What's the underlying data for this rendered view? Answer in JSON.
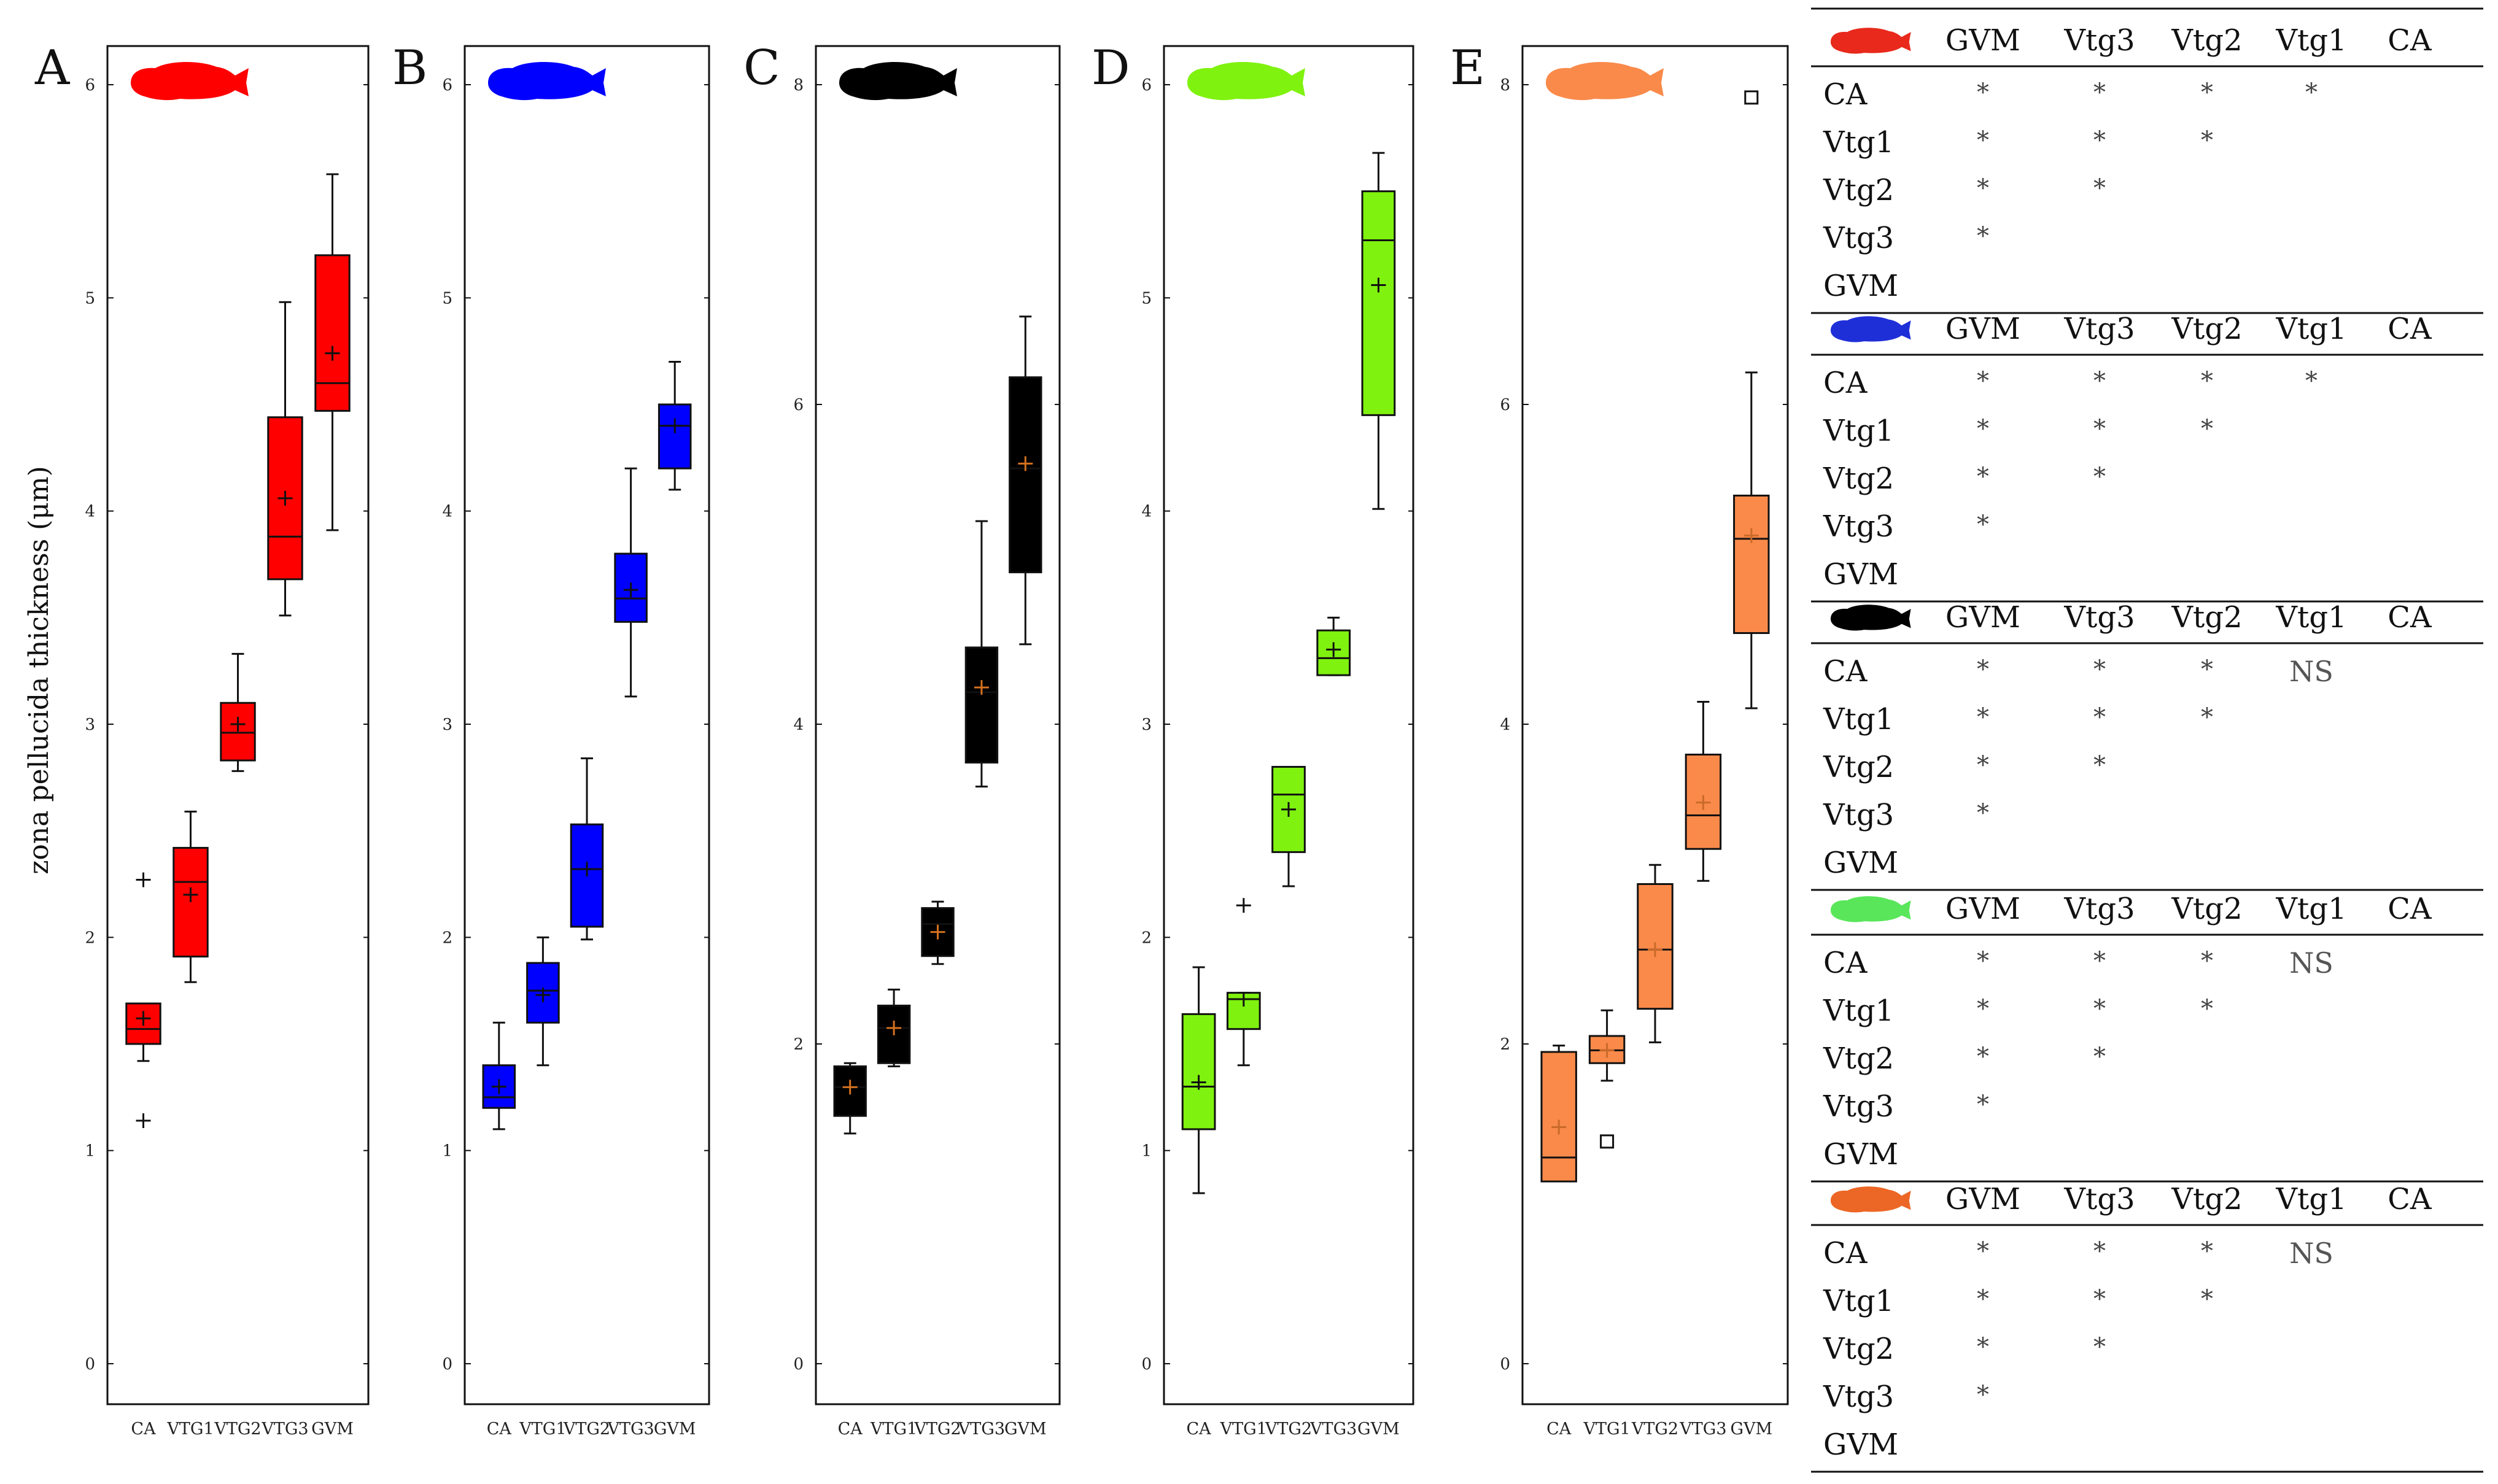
{
  "y_axis_label": "zona pellucida thickness (μm)",
  "chart_data": [
    {
      "type": "box",
      "panel_label": "A",
      "color": "#ff0000",
      "mean_color": "#111111",
      "categories": [
        "CA",
        "VTG1",
        "VTG2",
        "VTG3",
        "GVM"
      ],
      "ylim": [
        0,
        6
      ],
      "yticks": [
        0,
        1,
        2,
        3,
        4,
        5,
        6
      ],
      "boxes": [
        {
          "min": 1.42,
          "q1": 1.5,
          "median": 1.57,
          "q3": 1.69,
          "max": 1.69,
          "mean": 1.62,
          "outliers": [
            {
              "value": 2.27,
              "marker": "plus"
            },
            {
              "value": 1.14,
              "marker": "plus"
            }
          ]
        },
        {
          "min": 1.79,
          "q1": 1.91,
          "median": 2.26,
          "q3": 2.42,
          "max": 2.59,
          "mean": 2.2,
          "outliers": []
        },
        {
          "min": 2.78,
          "q1": 2.83,
          "median": 2.96,
          "q3": 3.1,
          "max": 3.33,
          "mean": 3.0,
          "outliers": []
        },
        {
          "min": 3.51,
          "q1": 3.68,
          "median": 3.88,
          "q3": 4.44,
          "max": 4.98,
          "mean": 4.06,
          "outliers": []
        },
        {
          "min": 3.91,
          "q1": 4.47,
          "median": 4.6,
          "q3": 5.2,
          "max": 5.58,
          "mean": 4.74,
          "outliers": []
        }
      ]
    },
    {
      "type": "box",
      "panel_label": "B",
      "color": "#0000ff",
      "mean_color": "#111111",
      "categories": [
        "CA",
        "VTG1",
        "VTG2",
        "VTG3",
        "GVM"
      ],
      "ylim": [
        0,
        6
      ],
      "yticks": [
        0,
        1,
        2,
        3,
        4,
        5,
        6
      ],
      "boxes": [
        {
          "min": 1.1,
          "q1": 1.2,
          "median": 1.25,
          "q3": 1.4,
          "max": 1.6,
          "mean": 1.3,
          "outliers": []
        },
        {
          "min": 1.4,
          "q1": 1.6,
          "median": 1.75,
          "q3": 1.88,
          "max": 2.0,
          "mean": 1.73,
          "outliers": []
        },
        {
          "min": 1.99,
          "q1": 2.05,
          "median": 2.32,
          "q3": 2.53,
          "max": 2.84,
          "mean": 2.32,
          "outliers": []
        },
        {
          "min": 3.13,
          "q1": 3.48,
          "median": 3.59,
          "q3": 3.8,
          "max": 4.2,
          "mean": 3.63,
          "outliers": []
        },
        {
          "min": 4.1,
          "q1": 4.2,
          "median": 4.4,
          "q3": 4.5,
          "max": 4.7,
          "mean": 4.4,
          "outliers": []
        }
      ]
    },
    {
      "type": "box",
      "panel_label": "C",
      "color": "#000000",
      "mean_color": "#d4711f",
      "categories": [
        "CA",
        "VTG1",
        "VTG2",
        "VTG3",
        "GVM"
      ],
      "ylim": [
        0,
        8
      ],
      "yticks": [
        0,
        2,
        4,
        6,
        8
      ],
      "boxes": [
        {
          "min": 1.44,
          "q1": 1.55,
          "median": 1.73,
          "q3": 1.86,
          "max": 1.88,
          "mean": 1.73,
          "outliers": []
        },
        {
          "min": 1.86,
          "q1": 1.88,
          "median": 2.1,
          "q3": 2.24,
          "max": 2.34,
          "mean": 2.1,
          "outliers": []
        },
        {
          "min": 2.5,
          "q1": 2.55,
          "median": 2.75,
          "q3": 2.85,
          "max": 2.89,
          "mean": 2.7,
          "outliers": []
        },
        {
          "min": 3.61,
          "q1": 3.76,
          "median": 4.2,
          "q3": 4.48,
          "max": 5.27,
          "mean": 4.23,
          "outliers": []
        },
        {
          "min": 4.5,
          "q1": 4.95,
          "median": 5.6,
          "q3": 6.17,
          "max": 6.55,
          "mean": 5.63,
          "outliers": []
        }
      ]
    },
    {
      "type": "box",
      "panel_label": "D",
      "color": "#7ff20f",
      "mean_color": "#111111",
      "categories": [
        "CA",
        "VTG1",
        "VTG2",
        "VTG3",
        "GVM"
      ],
      "ylim": [
        0,
        6
      ],
      "yticks": [
        0,
        1,
        2,
        3,
        4,
        5,
        6
      ],
      "boxes": [
        {
          "min": 0.8,
          "q1": 1.1,
          "median": 1.3,
          "q3": 1.64,
          "max": 1.86,
          "mean": 1.32,
          "outliers": []
        },
        {
          "min": 1.4,
          "q1": 1.57,
          "median": 1.71,
          "q3": 1.74,
          "max": 1.74,
          "mean": 1.71,
          "outliers": [
            {
              "value": 2.15,
              "marker": "plus"
            }
          ]
        },
        {
          "min": 2.24,
          "q1": 2.4,
          "median": 2.67,
          "q3": 2.8,
          "max": 2.8,
          "mean": 2.6,
          "outliers": []
        },
        {
          "min": 3.23,
          "q1": 3.23,
          "median": 3.31,
          "q3": 3.44,
          "max": 3.5,
          "mean": 3.35,
          "outliers": []
        },
        {
          "min": 4.01,
          "q1": 4.45,
          "median": 5.27,
          "q3": 5.5,
          "max": 5.68,
          "mean": 5.06,
          "outliers": []
        }
      ]
    },
    {
      "type": "box",
      "panel_label": "E",
      "color": "#fa8a4a",
      "mean_color": "#c96a2a",
      "categories": [
        "CA",
        "VTG1",
        "VTG2",
        "VTG3",
        "GVM"
      ],
      "ylim": [
        0,
        8
      ],
      "yticks": [
        0,
        2,
        4,
        6,
        8
      ],
      "boxes": [
        {
          "min": 1.14,
          "q1": 1.14,
          "median": 1.29,
          "q3": 1.95,
          "max": 1.99,
          "mean": 1.48,
          "outliers": []
        },
        {
          "min": 1.77,
          "q1": 1.88,
          "median": 1.96,
          "q3": 2.05,
          "max": 2.21,
          "mean": 1.96,
          "outliers": [
            {
              "value": 1.39,
              "marker": "square"
            }
          ]
        },
        {
          "min": 2.01,
          "q1": 2.22,
          "median": 2.59,
          "q3": 3.0,
          "max": 3.12,
          "mean": 2.59,
          "outliers": []
        },
        {
          "min": 3.02,
          "q1": 3.22,
          "median": 3.43,
          "q3": 3.81,
          "max": 4.14,
          "mean": 3.51,
          "outliers": []
        },
        {
          "min": 4.1,
          "q1": 4.57,
          "median": 5.16,
          "q3": 5.43,
          "max": 6.2,
          "mean": 5.18,
          "outliers": [
            {
              "value": 7.92,
              "marker": "square"
            }
          ]
        }
      ]
    }
  ],
  "significance_tables": {
    "columns": [
      "GVM",
      "Vtg3",
      "Vtg2",
      "Vtg1",
      "CA"
    ],
    "tables": [
      {
        "fish_color": "#e8291c",
        "rows": [
          {
            "label": "CA",
            "cells": [
              "*",
              "*",
              "*",
              "*",
              ""
            ]
          },
          {
            "label": "Vtg1",
            "cells": [
              "*",
              "*",
              "*",
              "",
              ""
            ]
          },
          {
            "label": "Vtg2",
            "cells": [
              "*",
              "*",
              "",
              "",
              ""
            ]
          },
          {
            "label": "Vtg3",
            "cells": [
              "*",
              "",
              "",
              "",
              ""
            ]
          },
          {
            "label": "GVM",
            "cells": [
              "",
              "",
              "",
              "",
              ""
            ]
          }
        ]
      },
      {
        "fish_color": "#1f2fd8",
        "rows": [
          {
            "label": "CA",
            "cells": [
              "*",
              "*",
              "*",
              "*",
              ""
            ]
          },
          {
            "label": "Vtg1",
            "cells": [
              "*",
              "*",
              "*",
              "",
              ""
            ]
          },
          {
            "label": "Vtg2",
            "cells": [
              "*",
              "*",
              "",
              "",
              ""
            ]
          },
          {
            "label": "Vtg3",
            "cells": [
              "*",
              "",
              "",
              "",
              ""
            ]
          },
          {
            "label": "GVM",
            "cells": [
              "",
              "",
              "",
              "",
              ""
            ]
          }
        ]
      },
      {
        "fish_color": "#000000",
        "rows": [
          {
            "label": "CA",
            "cells": [
              "*",
              "*",
              "*",
              "NS",
              ""
            ]
          },
          {
            "label": "Vtg1",
            "cells": [
              "*",
              "*",
              "*",
              "",
              ""
            ]
          },
          {
            "label": "Vtg2",
            "cells": [
              "*",
              "*",
              "",
              "",
              ""
            ]
          },
          {
            "label": "Vtg3",
            "cells": [
              "*",
              "",
              "",
              "",
              ""
            ]
          },
          {
            "label": "GVM",
            "cells": [
              "",
              "",
              "",
              "",
              ""
            ]
          }
        ]
      },
      {
        "fish_color": "#59e65a",
        "rows": [
          {
            "label": "CA",
            "cells": [
              "*",
              "*",
              "*",
              "NS",
              ""
            ]
          },
          {
            "label": "Vtg1",
            "cells": [
              "*",
              "*",
              "*",
              "",
              ""
            ]
          },
          {
            "label": "Vtg2",
            "cells": [
              "*",
              "*",
              "",
              "",
              ""
            ]
          },
          {
            "label": "Vtg3",
            "cells": [
              "*",
              "",
              "",
              "",
              ""
            ]
          },
          {
            "label": "GVM",
            "cells": [
              "",
              "",
              "",
              "",
              ""
            ]
          }
        ]
      },
      {
        "fish_color": "#ec6625",
        "rows": [
          {
            "label": "CA",
            "cells": [
              "*",
              "*",
              "*",
              "NS",
              ""
            ]
          },
          {
            "label": "Vtg1",
            "cells": [
              "*",
              "*",
              "*",
              "",
              ""
            ]
          },
          {
            "label": "Vtg2",
            "cells": [
              "*",
              "*",
              "",
              "",
              ""
            ]
          },
          {
            "label": "Vtg3",
            "cells": [
              "*",
              "",
              "",
              "",
              ""
            ]
          },
          {
            "label": "GVM",
            "cells": [
              "",
              "",
              "",
              "",
              ""
            ]
          }
        ]
      }
    ]
  }
}
